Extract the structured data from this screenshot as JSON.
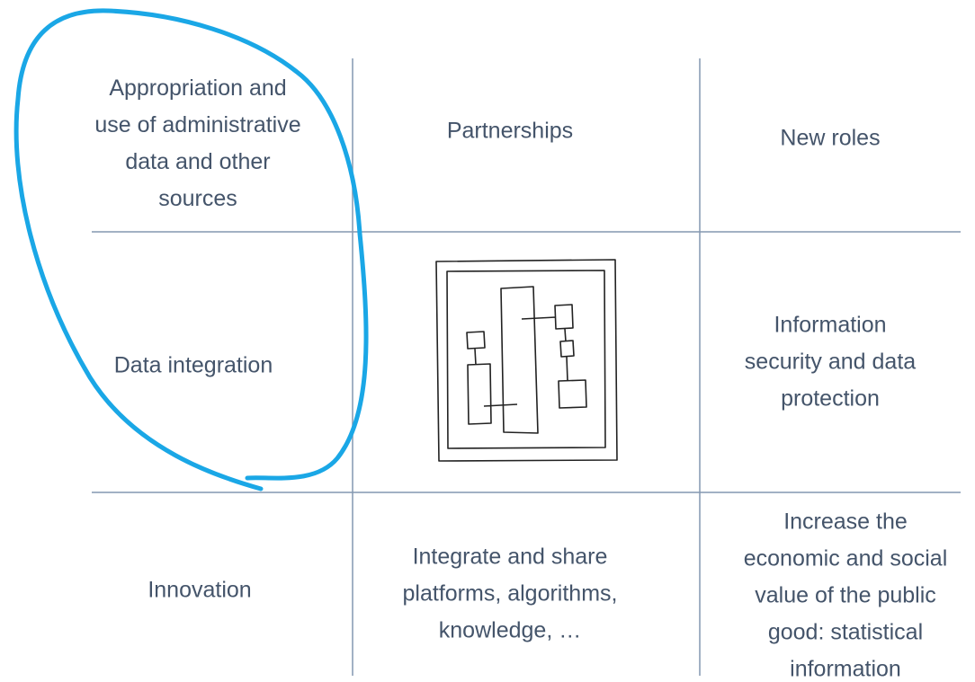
{
  "cells": [
    {
      "lines": [
        "Appropriation and",
        "use of administrative",
        "data and other",
        "sources"
      ]
    },
    {
      "lines": [
        "Partnerships"
      ]
    },
    {
      "lines": [
        "New roles"
      ]
    },
    {
      "lines": [
        "Data integration"
      ]
    },
    {
      "lines": [
        "Information",
        "security and data",
        "protection"
      ]
    },
    {
      "lines": [
        "Innovation"
      ]
    },
    {
      "lines": [
        "Integrate and share",
        "platforms, algorithms,",
        "knowledge, …"
      ]
    },
    {
      "lines": [
        "Increase the",
        "economic and social",
        "value of the public",
        "good:  statistical",
        "information"
      ]
    }
  ]
}
